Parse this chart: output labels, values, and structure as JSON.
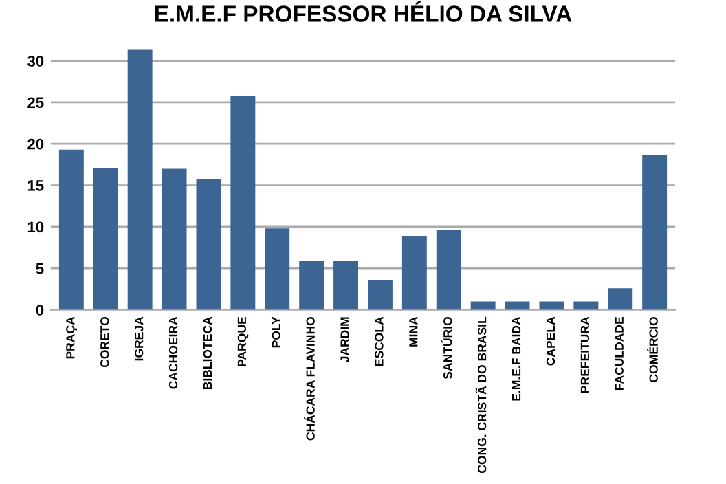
{
  "chart_data": {
    "type": "bar",
    "title": "E.M.E.F PROFESSOR HÉLIO DA SILVA",
    "categories": [
      "PRAÇA",
      "CORETO",
      "IGREJA",
      "CACHOEIRA",
      "BIBLIOTECA",
      "PARQUE",
      "POLY",
      "CHÁCARA FLAVINHO",
      "JARDIM",
      "ESCOLA",
      "MINA",
      "SANTÚRIO",
      "CONG. CRISTÃ DO BRASIL",
      "E.M.E.F BAIDA",
      "CAPELA",
      "PREFEITURA",
      "FACULDADE",
      "COMÉRCIO"
    ],
    "values": [
      19.3,
      17.1,
      31.4,
      17.0,
      15.8,
      25.8,
      9.8,
      5.9,
      5.9,
      3.6,
      8.9,
      9.6,
      1.0,
      1.0,
      1.0,
      1.0,
      2.6,
      18.6
    ],
    "color": "#3d6594",
    "ylim": [
      0,
      31.5
    ],
    "yticks": [
      0,
      5,
      10,
      15,
      20,
      25,
      30
    ],
    "grid": "y"
  }
}
